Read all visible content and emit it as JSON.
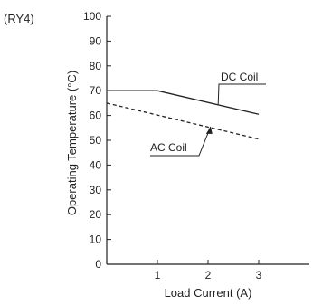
{
  "chart_data": {
    "type": "line",
    "corner_label": "(RY4)",
    "xlabel": "Load Current (A)",
    "ylabel": "Operating Temperature (°C)",
    "xlim": [
      0,
      4
    ],
    "ylim": [
      0,
      100
    ],
    "x_ticks": [
      1,
      2,
      3
    ],
    "y_ticks": [
      0,
      10,
      20,
      30,
      40,
      50,
      60,
      70,
      80,
      90,
      100
    ],
    "grid": false,
    "series": [
      {
        "name": "DC Coil",
        "style": "solid",
        "color": "#222222",
        "x": [
          0,
          1,
          3
        ],
        "y": [
          70,
          70,
          60.5
        ]
      },
      {
        "name": "AC Coil",
        "style": "dashed",
        "color": "#222222",
        "x": [
          0,
          3
        ],
        "y": [
          65,
          50.5
        ]
      }
    ]
  }
}
